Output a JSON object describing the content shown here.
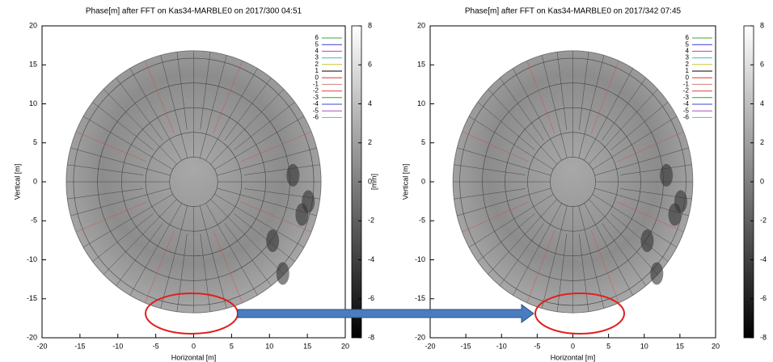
{
  "chart_data": [
    {
      "type": "heatmap",
      "title": "Phase[m]  after FFT on Kas34-MARBLE0 on 2017/300 04:51",
      "x_label": "Horizontal [m]",
      "y_label": "Vertical [m]",
      "xlim": [
        -20,
        20
      ],
      "ylim": [
        -20,
        20
      ],
      "xticks": [
        -20,
        -15,
        -10,
        -5,
        0,
        5,
        10,
        15,
        20
      ],
      "yticks": [
        -20,
        -15,
        -10,
        -5,
        0,
        5,
        10,
        15,
        20
      ],
      "colorbar": {
        "label": "[mm]",
        "lim": [
          -8,
          8
        ],
        "ticks": [
          -8,
          -6,
          -4,
          -2,
          0,
          2,
          4,
          6,
          8
        ]
      },
      "contours": [
        {
          "name": "6",
          "color": "#3aa83a"
        },
        {
          "name": "5",
          "color": "#3a3ad8"
        },
        {
          "name": "4",
          "color": "#c040c0"
        },
        {
          "name": "3",
          "color": "#30c0c0"
        },
        {
          "name": "2",
          "color": "#c8c830"
        },
        {
          "name": "1",
          "color": "#000000"
        },
        {
          "name": "0",
          "color": "#e03030"
        },
        {
          "name": "-1",
          "color": "#d08080"
        },
        {
          "name": "-2",
          "color": "#e04040"
        },
        {
          "name": "-3",
          "color": "#30a030"
        },
        {
          "name": "-4",
          "color": "#4040d0"
        },
        {
          "name": "-5",
          "color": "#b050b0"
        },
        {
          "name": "-6",
          "color": "#40c8c8"
        }
      ]
    },
    {
      "type": "heatmap",
      "title": "Phase[m]  after FFT on Kas34-MARBLE0 on 2017/342 07:45",
      "x_label": "Horizontal [m]",
      "y_label": "Vertical [m]",
      "xlim": [
        -20,
        20
      ],
      "ylim": [
        -20,
        20
      ],
      "xticks": [
        -20,
        -15,
        -10,
        -5,
        0,
        5,
        10,
        15,
        20
      ],
      "yticks": [
        -20,
        -15,
        -10,
        -5,
        0,
        5,
        10,
        15,
        20
      ],
      "colorbar": {
        "lim": [
          -8,
          8
        ],
        "ticks": [
          -8,
          -6,
          -4,
          -2,
          0,
          2,
          4,
          6,
          8
        ]
      },
      "contours": [
        {
          "name": "6",
          "color": "#3aa83a"
        },
        {
          "name": "5",
          "color": "#3a3ad8"
        },
        {
          "name": "4",
          "color": "#c040c0"
        },
        {
          "name": "3",
          "color": "#30c0c0"
        },
        {
          "name": "2",
          "color": "#c8c830"
        },
        {
          "name": "1",
          "color": "#000000"
        },
        {
          "name": "0",
          "color": "#e03030"
        },
        {
          "name": "-1",
          "color": "#d08080"
        },
        {
          "name": "-2",
          "color": "#e04040"
        },
        {
          "name": "-3",
          "color": "#30a030"
        },
        {
          "name": "-4",
          "color": "#4040d0"
        },
        {
          "name": "-5",
          "color": "#b050b0"
        },
        {
          "name": "-6",
          "color": "#40c8c8"
        }
      ]
    }
  ]
}
